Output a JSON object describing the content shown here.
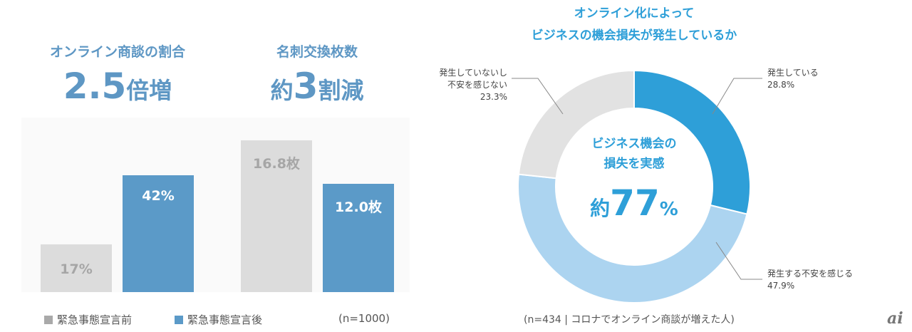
{
  "chart_data": [
    {
      "type": "bar",
      "title": "オンライン商談の割合",
      "headline": {
        "num": "2.5",
        "suffix": "倍増"
      },
      "categories": [
        "緊急事態宣言前",
        "緊急事態宣言後"
      ],
      "values": [
        17,
        42
      ],
      "value_labels": [
        "17%",
        "42%"
      ],
      "ylim": [
        0,
        60
      ]
    },
    {
      "type": "bar",
      "title": "名刺交換枚数",
      "headline": {
        "prefix": "約",
        "num": "3",
        "suffix": "割減"
      },
      "categories": [
        "緊急事態宣言前",
        "緊急事態宣言後"
      ],
      "values": [
        16.8,
        12.0
      ],
      "value_labels": [
        "16.8枚",
        "12.0枚"
      ],
      "ylim": [
        0,
        18.5
      ]
    },
    {
      "type": "pie",
      "title_lines": [
        "オンライン化によって",
        "ビジネスの機会損失が発生しているか"
      ],
      "slices": [
        {
          "label": "発生している",
          "value": 28.8,
          "value_label": "28.8%",
          "color": "#2e9fd8"
        },
        {
          "label": "発生する不安を感じる",
          "value": 47.9,
          "value_label": "47.9%",
          "color": "#acd4f0"
        },
        {
          "label_lines": [
            "発生していないし",
            "不安を感じない"
          ],
          "value": 23.3,
          "value_label": "23.3%",
          "color": "#e2e2e2"
        }
      ],
      "center_lines": [
        "ビジネス機会の",
        "損失を実感"
      ],
      "center_value": {
        "prefix": "約",
        "num": "77",
        "suffix": "%"
      },
      "note": "(n=434 | コロナでオンライン商談が増えた人)"
    }
  ],
  "legend": [
    {
      "label": "緊急事態宣言前",
      "color": "#a9a9a9"
    },
    {
      "label": "緊急事態宣言後",
      "color": "#5b9ac8"
    }
  ],
  "left_note": "(n=1000)",
  "bar_colors": [
    "#dcdcdc",
    "#5b9ac8"
  ],
  "label_colors": [
    "#a6a6a6",
    "#ffffff"
  ],
  "logo": "ai"
}
